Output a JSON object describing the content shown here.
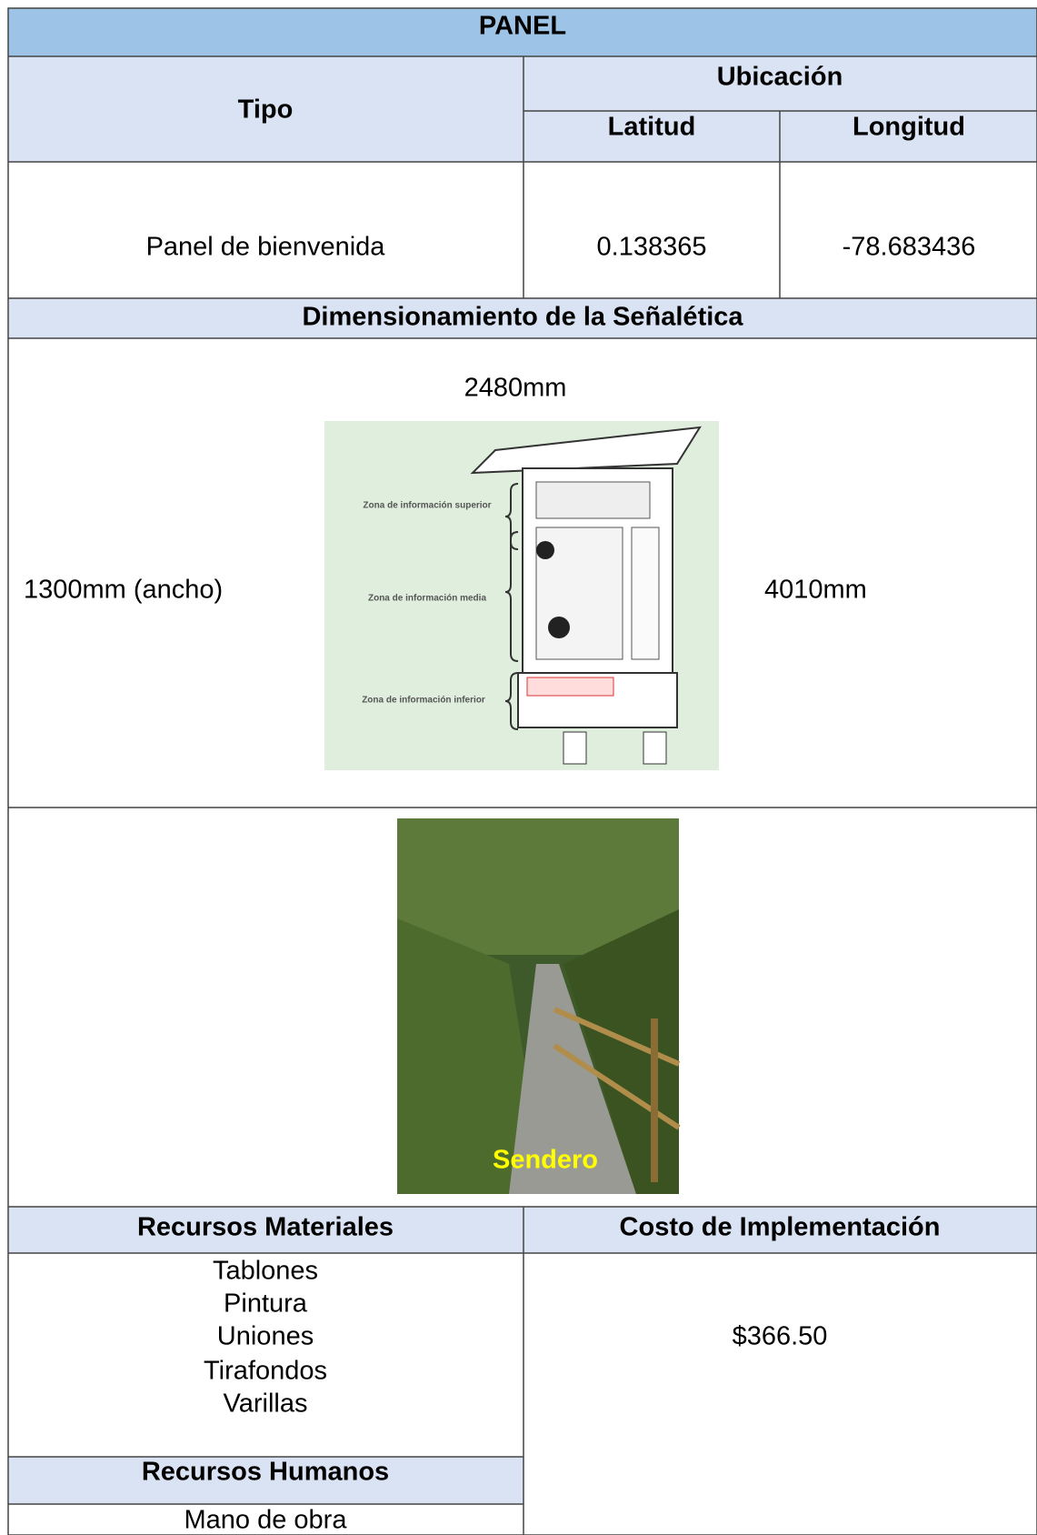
{
  "header": {
    "title": "PANEL"
  },
  "table": {
    "tipo_header": "Tipo",
    "ubicacion_header": "Ubicación",
    "latitud_header": "Latitud",
    "longitud_header": "Longitud",
    "tipo": "Panel de bienvenida",
    "latitud": "0.138365",
    "longitud": "-78.683436"
  },
  "dimensiones": {
    "title": "Dimensionamiento de la Señalética",
    "top": "2480mm",
    "left": "1300mm (ancho)",
    "right": "4010mm",
    "zones": [
      "Zona de información superior",
      "Zona de información media",
      "Zona de información inferior"
    ]
  },
  "photo": {
    "caption": "Sendero"
  },
  "recursos": {
    "materiales_header": "Recursos Materiales",
    "materiales": [
      "Tablones",
      "Pintura",
      "Uniones",
      "Tirafondos",
      "Varillas"
    ],
    "humanos_header": "Recursos Humanos",
    "humanos": [
      "Mano de obra"
    ],
    "costo_header": "Costo de Implementación",
    "costo": "$366.50"
  }
}
